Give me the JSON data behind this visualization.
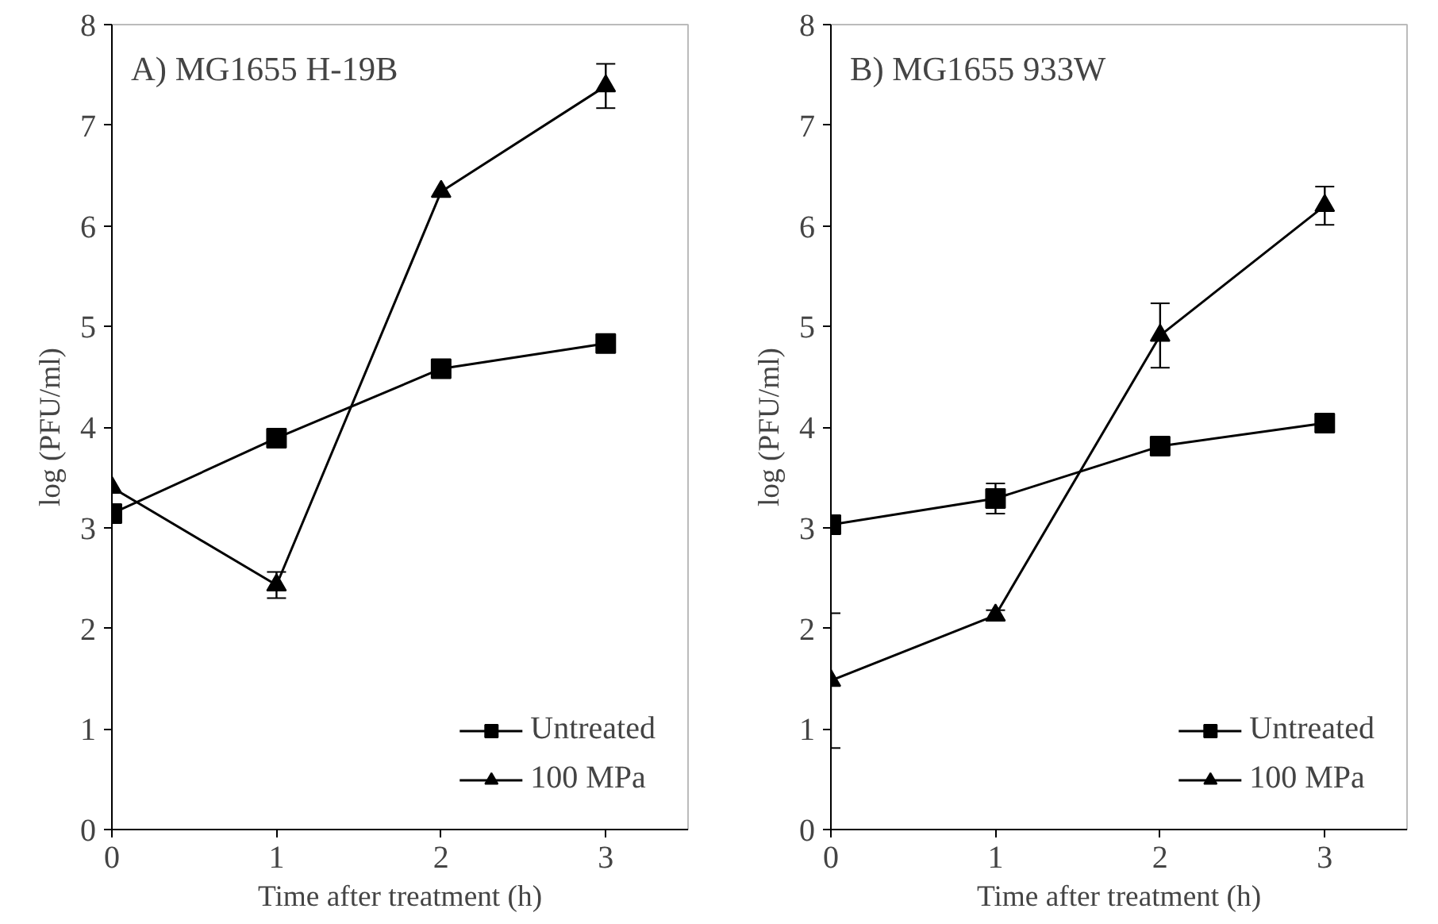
{
  "chart_data": [
    {
      "type": "line",
      "title": "A) MG1655 H-19B",
      "xlabel": "Time after treatment (h)",
      "ylabel": "log (PFU/ml)",
      "x": [
        0,
        1,
        2,
        3
      ],
      "xlim": [
        0,
        3.5
      ],
      "xticks": [
        0,
        1,
        2,
        3
      ],
      "ylim": [
        0,
        8
      ],
      "yticks": [
        0,
        1,
        2,
        3,
        4,
        5,
        6,
        7,
        8
      ],
      "grid": false,
      "legend": "bottom right",
      "line_style": "solid",
      "series": [
        {
          "name": "Untreated",
          "color": "#000000",
          "marker": "square",
          "values": [
            3.14,
            3.89,
            4.58,
            4.83
          ]
        },
        {
          "name": "100 MPa",
          "color": "#000000",
          "marker": "triangle",
          "values": [
            3.4,
            2.43,
            6.34,
            7.39
          ],
          "errors": [
            null,
            0.13,
            null,
            0.22
          ]
        }
      ]
    },
    {
      "type": "line",
      "title": "B) MG1655 933W",
      "xlabel": "Time after treatment (h)",
      "ylabel": "log (PFU/ml)",
      "x": [
        0,
        1,
        2,
        3
      ],
      "xlim": [
        0,
        3.5
      ],
      "xticks": [
        0,
        1,
        2,
        3
      ],
      "ylim": [
        0,
        8
      ],
      "yticks": [
        0,
        1,
        2,
        3,
        4,
        5,
        6,
        7,
        8
      ],
      "grid": false,
      "legend": "bottom right",
      "line_style": "solid",
      "series": [
        {
          "name": "Untreated",
          "color": "#000000",
          "marker": "square",
          "values": [
            3.03,
            3.29,
            3.81,
            4.04
          ],
          "errors": [
            null,
            0.15,
            null,
            0.05
          ]
        },
        {
          "name": "100 MPa",
          "color": "#000000",
          "marker": "triangle",
          "values": [
            1.48,
            2.13,
            4.91,
            6.2
          ],
          "errors": [
            0.67,
            0.05,
            0.32,
            0.19
          ]
        }
      ]
    }
  ]
}
